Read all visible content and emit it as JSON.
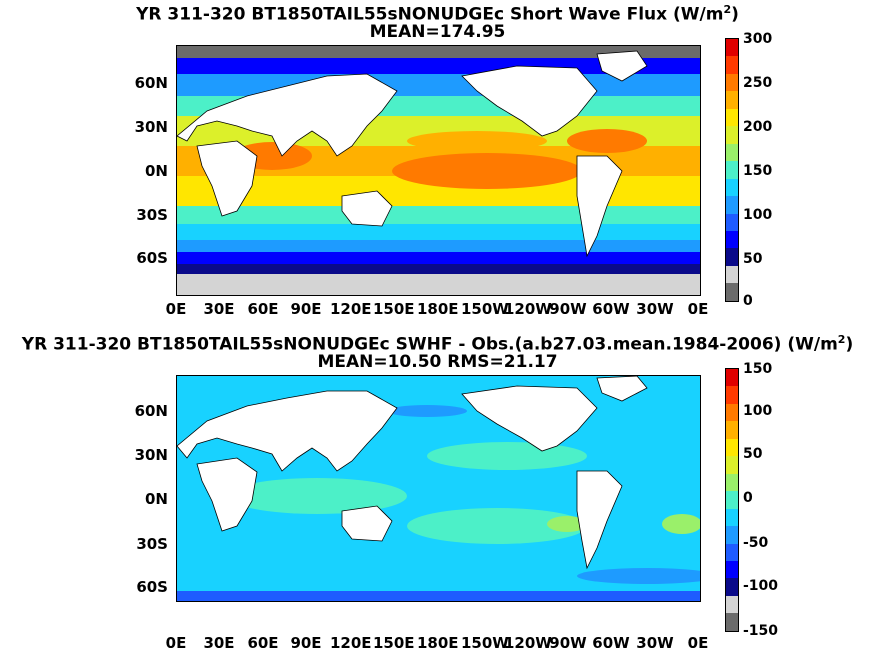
{
  "panels": [
    {
      "title_main": "YR 311-320 BT1850TAIL55sNONUDGEc  Short Wave Flux (W/m",
      "title_sup": "2",
      "title_end": ")",
      "subtitle": "MEAN=174.95",
      "lat_labels": [
        "60N",
        "30N",
        "0N",
        "30S",
        "60S"
      ],
      "lon_labels": [
        "0E",
        "30E",
        "60E",
        "90E",
        "120E",
        "150E",
        "180E",
        "150W",
        "120W",
        "90W",
        "60W",
        "30W",
        "0E"
      ],
      "colorbar_labels": [
        "300",
        "250",
        "200",
        "150",
        "100",
        "50",
        "0"
      ],
      "colormap": [
        "#6b6b6b",
        "#d4d4d4",
        "#0a0a8a",
        "#0000ff",
        "#1e5cff",
        "#1e9bff",
        "#18d2ff",
        "#4cf0c8",
        "#9af06a",
        "#dcf02a",
        "#ffe600",
        "#ffb000",
        "#ff7a00",
        "#ff3a00",
        "#e00000"
      ]
    },
    {
      "title_main": "YR 311-320 BT1850TAIL55sNONUDGEc SWHF - Obs.(a.b27.03.mean.1984-2006) (W/m",
      "title_sup": "2",
      "title_end": ")",
      "subtitle": "MEAN=10.50 RMS=21.17",
      "lat_labels": [
        "60N",
        "30N",
        "0N",
        "30S",
        "60S"
      ],
      "lon_labels": [
        "0E",
        "30E",
        "60E",
        "90E",
        "120E",
        "150E",
        "180E",
        "150W",
        "120W",
        "90W",
        "60W",
        "30W",
        "0E"
      ],
      "colorbar_labels": [
        "150",
        "100",
        "50",
        "0",
        "-50",
        "-100",
        "-150"
      ],
      "colormap": [
        "#6b6b6b",
        "#d4d4d4",
        "#0a0a8a",
        "#0000ff",
        "#1e5cff",
        "#1e9bff",
        "#18d2ff",
        "#4cf0c8",
        "#9af06a",
        "#dcf02a",
        "#ffe600",
        "#ffb000",
        "#ff7a00",
        "#ff3a00",
        "#e00000"
      ]
    }
  ]
}
